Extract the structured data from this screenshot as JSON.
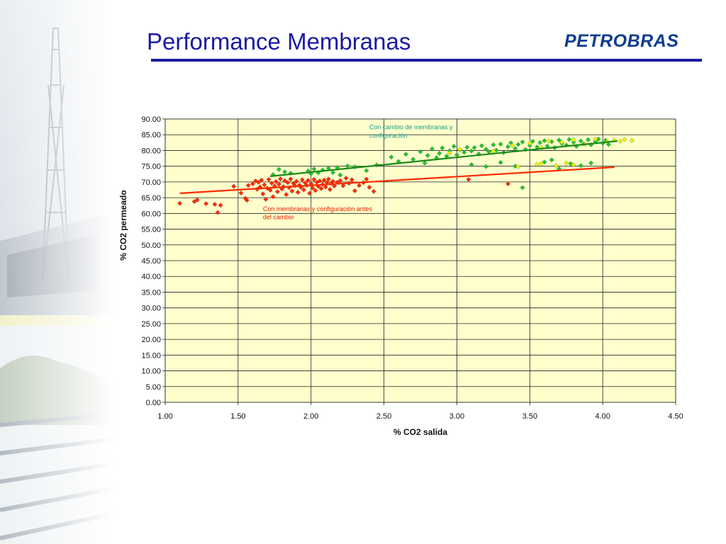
{
  "slide": {
    "title": "Performance Membranas",
    "logo_text": "PETROBRAS"
  },
  "colors": {
    "title": "#1a1aa6",
    "logo": "#0f3d8c",
    "plot_bg": "#ffffcc",
    "red_series": "#ff2a00",
    "green_series": "#22c42a",
    "yellow_series": "#e6f000"
  },
  "chart_data": {
    "type": "scatter",
    "title": "",
    "xlabel": "% CO2 salida",
    "ylabel": "% CO2 permeado",
    "xlim": [
      1.0,
      4.5
    ],
    "ylim": [
      0.0,
      90.0
    ],
    "x_ticks": [
      "1.00",
      "1.50",
      "2.00",
      "2.50",
      "3.00",
      "3.50",
      "4.00",
      "4.50"
    ],
    "y_ticks": [
      "0.00",
      "5.00",
      "10.00",
      "15.00",
      "20.00",
      "25.00",
      "30.00",
      "35.00",
      "40.00",
      "45.00",
      "50.00",
      "55.00",
      "60.00",
      "65.00",
      "70.00",
      "75.00",
      "80.00",
      "85.00",
      "90.00"
    ],
    "grid": true,
    "annotations": [
      {
        "text": "Con cambio de membranas y",
        "x": 2.4,
        "y": 86.7,
        "color": "#1a9a8a"
      },
      {
        "text": "configuración",
        "x": 2.4,
        "y": 84.0,
        "color": "#1a9a8a"
      },
      {
        "text": "Con membranas y configuración antes",
        "x": 1.67,
        "y": 60.8,
        "color": "#e01b00"
      },
      {
        "text": "del cambio",
        "x": 1.67,
        "y": 58.2,
        "color": "#e01b00"
      }
    ],
    "trendlines": [
      {
        "series": "before",
        "x": [
          1.1,
          4.08
        ],
        "y": [
          66.4,
          74.7
        ],
        "color": "#ff2a00"
      },
      {
        "series": "after",
        "x": [
          1.72,
          4.1
        ],
        "y": [
          71.8,
          83.0
        ],
        "color": "#1a8a1a"
      }
    ],
    "series": [
      {
        "id": "before",
        "color": "#ff2a00",
        "points": [
          [
            1.1,
            63.2
          ],
          [
            1.2,
            63.8
          ],
          [
            1.22,
            64.3
          ],
          [
            1.28,
            63.1
          ],
          [
            1.34,
            62.9
          ],
          [
            1.36,
            60.3
          ],
          [
            1.38,
            62.6
          ],
          [
            1.47,
            68.6
          ],
          [
            1.52,
            66.5
          ],
          [
            1.55,
            64.8
          ],
          [
            1.56,
            64.2
          ],
          [
            1.57,
            68.9
          ],
          [
            1.6,
            69.4
          ],
          [
            1.62,
            70.3
          ],
          [
            1.63,
            67.7
          ],
          [
            1.64,
            69.9
          ],
          [
            1.65,
            68.4
          ],
          [
            1.66,
            70.6
          ],
          [
            1.67,
            66.2
          ],
          [
            1.68,
            69.1
          ],
          [
            1.69,
            64.5
          ],
          [
            1.7,
            68.0
          ],
          [
            1.71,
            70.8
          ],
          [
            1.72,
            67.4
          ],
          [
            1.73,
            69.6
          ],
          [
            1.74,
            65.3
          ],
          [
            1.75,
            68.7
          ],
          [
            1.76,
            70.1
          ],
          [
            1.77,
            66.9
          ],
          [
            1.78,
            69.3
          ],
          [
            1.79,
            71.0
          ],
          [
            1.8,
            67.8
          ],
          [
            1.81,
            68.5
          ],
          [
            1.82,
            70.4
          ],
          [
            1.83,
            66.0
          ],
          [
            1.84,
            69.8
          ],
          [
            1.85,
            68.2
          ],
          [
            1.86,
            70.9
          ],
          [
            1.87,
            67.1
          ],
          [
            1.88,
            69.5
          ],
          [
            1.89,
            68.8
          ],
          [
            1.9,
            70.2
          ],
          [
            1.91,
            66.7
          ],
          [
            1.92,
            69.0
          ],
          [
            1.93,
            68.3
          ],
          [
            1.94,
            70.7
          ],
          [
            1.95,
            67.5
          ],
          [
            1.96,
            69.7
          ],
          [
            1.97,
            68.9
          ],
          [
            1.98,
            70.5
          ],
          [
            1.99,
            66.4
          ],
          [
            2.0,
            69.4
          ],
          [
            2.01,
            68.1
          ],
          [
            2.02,
            70.8
          ],
          [
            2.03,
            67.3
          ],
          [
            2.04,
            69.9
          ],
          [
            2.05,
            68.6
          ],
          [
            2.06,
            70.3
          ],
          [
            2.07,
            67.9
          ],
          [
            2.08,
            69.2
          ],
          [
            2.09,
            70.6
          ],
          [
            2.1,
            68.4
          ],
          [
            2.11,
            69.8
          ],
          [
            2.12,
            70.9
          ],
          [
            2.13,
            67.6
          ],
          [
            2.14,
            69.5
          ],
          [
            2.15,
            70.2
          ],
          [
            2.16,
            68.7
          ],
          [
            2.18,
            69.9
          ],
          [
            2.2,
            70.4
          ],
          [
            2.22,
            68.8
          ],
          [
            2.24,
            71.2
          ],
          [
            2.26,
            69.6
          ],
          [
            2.28,
            70.7
          ],
          [
            2.3,
            67.2
          ],
          [
            2.33,
            68.9
          ],
          [
            2.36,
            69.8
          ],
          [
            2.38,
            70.9
          ],
          [
            2.4,
            68.3
          ],
          [
            2.43,
            67.0
          ],
          [
            3.08,
            70.8
          ],
          [
            3.35,
            69.4
          ]
        ]
      },
      {
        "id": "after",
        "color": "#22c42a",
        "points": [
          [
            1.74,
            72.3
          ],
          [
            1.78,
            74.0
          ],
          [
            1.82,
            73.2
          ],
          [
            1.86,
            72.8
          ],
          [
            1.98,
            73.5
          ],
          [
            2.0,
            72.6
          ],
          [
            2.02,
            74.1
          ],
          [
            2.05,
            72.9
          ],
          [
            2.08,
            73.8
          ],
          [
            2.12,
            74.4
          ],
          [
            2.15,
            73.0
          ],
          [
            2.18,
            74.6
          ],
          [
            2.2,
            72.2
          ],
          [
            2.25,
            75.1
          ],
          [
            2.3,
            74.8
          ],
          [
            2.38,
            73.6
          ],
          [
            2.45,
            75.4
          ],
          [
            2.55,
            77.9
          ],
          [
            2.6,
            76.5
          ],
          [
            2.65,
            78.8
          ],
          [
            2.7,
            77.2
          ],
          [
            2.75,
            79.6
          ],
          [
            2.78,
            76.0
          ],
          [
            2.8,
            78.4
          ],
          [
            2.83,
            80.5
          ],
          [
            2.86,
            77.7
          ],
          [
            2.88,
            79.1
          ],
          [
            2.9,
            80.8
          ],
          [
            2.93,
            78.2
          ],
          [
            2.95,
            79.9
          ],
          [
            2.98,
            81.3
          ],
          [
            3.0,
            78.6
          ],
          [
            3.02,
            80.2
          ],
          [
            3.05,
            79.4
          ],
          [
            3.07,
            81.0
          ],
          [
            3.1,
            79.8
          ],
          [
            3.12,
            80.9
          ],
          [
            3.15,
            78.9
          ],
          [
            3.17,
            81.5
          ],
          [
            3.2,
            80.4
          ],
          [
            3.22,
            79.6
          ],
          [
            3.25,
            81.8
          ],
          [
            3.27,
            80.1
          ],
          [
            3.3,
            82.0
          ],
          [
            3.32,
            79.3
          ],
          [
            3.35,
            81.2
          ],
          [
            3.37,
            82.4
          ],
          [
            3.4,
            80.6
          ],
          [
            3.42,
            81.9
          ],
          [
            3.45,
            82.7
          ],
          [
            3.47,
            80.3
          ],
          [
            3.5,
            81.6
          ],
          [
            3.52,
            82.9
          ],
          [
            3.55,
            81.1
          ],
          [
            3.57,
            82.5
          ],
          [
            3.6,
            83.1
          ],
          [
            3.62,
            81.4
          ],
          [
            3.65,
            82.8
          ],
          [
            3.67,
            80.9
          ],
          [
            3.7,
            83.3
          ],
          [
            3.72,
            82.2
          ],
          [
            3.75,
            81.7
          ],
          [
            3.77,
            83.5
          ],
          [
            3.8,
            82.6
          ],
          [
            3.82,
            81.3
          ],
          [
            3.85,
            83.0
          ],
          [
            3.87,
            82.1
          ],
          [
            3.9,
            83.4
          ],
          [
            3.92,
            81.8
          ],
          [
            3.95,
            82.9
          ],
          [
            3.97,
            83.6
          ],
          [
            4.0,
            82.3
          ],
          [
            4.02,
            83.2
          ],
          [
            4.04,
            81.9
          ],
          [
            3.1,
            75.5
          ],
          [
            3.2,
            74.9
          ],
          [
            3.3,
            76.2
          ],
          [
            3.4,
            75.0
          ],
          [
            3.45,
            68.2
          ],
          [
            3.6,
            76.3
          ],
          [
            3.7,
            74.2
          ],
          [
            3.78,
            75.8
          ],
          [
            3.85,
            75.2
          ],
          [
            3.65,
            77.0
          ],
          [
            3.92,
            76.0
          ]
        ]
      },
      {
        "id": "after-yellow",
        "color": "#e6f000",
        "points": [
          [
            2.95,
            79.2
          ],
          [
            3.02,
            80.4
          ],
          [
            3.25,
            79.8
          ],
          [
            3.38,
            81.6
          ],
          [
            3.5,
            82.3
          ],
          [
            3.58,
            80.9
          ],
          [
            3.63,
            83.0
          ],
          [
            3.72,
            82.6
          ],
          [
            3.8,
            83.4
          ],
          [
            3.88,
            82.0
          ],
          [
            3.95,
            83.6
          ],
          [
            4.03,
            82.8
          ],
          [
            4.08,
            83.3
          ],
          [
            4.12,
            82.9
          ],
          [
            4.15,
            83.5
          ],
          [
            4.2,
            83.2
          ],
          [
            3.55,
            75.6
          ],
          [
            3.68,
            75.2
          ],
          [
            3.75,
            76.0
          ],
          [
            3.8,
            75.5
          ],
          [
            3.42,
            74.8
          ],
          [
            3.58,
            75.9
          ]
        ]
      }
    ]
  }
}
